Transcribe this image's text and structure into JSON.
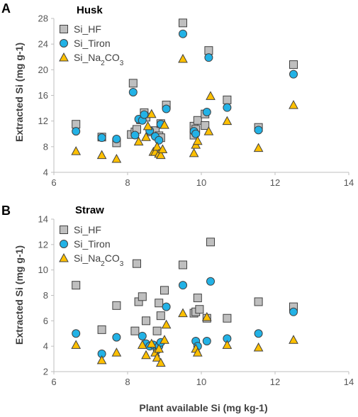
{
  "colors": {
    "hf": "#bfbfbf",
    "tiron": "#22b2e6",
    "na2co3": "#ffc000",
    "stroke": "#404040",
    "axis": "#bfbfbf"
  },
  "chart_data": [
    {
      "type": "scatter",
      "panel_label": "A",
      "title": "Husk",
      "xlabel": "",
      "ylabel": "Extracted Si (mg g-1)",
      "xlim": [
        6,
        14
      ],
      "ylim": [
        4,
        28
      ],
      "xticks": [
        "6",
        "8",
        "10",
        "12",
        "14"
      ],
      "yticks": [
        "4",
        "8",
        "12",
        "16",
        "20",
        "24",
        "28"
      ],
      "legend_position": "top-left",
      "series": [
        {
          "name": "Si_HF",
          "marker": "square",
          "points": [
            [
              6.6,
              11.5
            ],
            [
              7.3,
              9.5
            ],
            [
              7.7,
              8.6
            ],
            [
              8.1,
              9.9
            ],
            [
              8.15,
              17.9
            ],
            [
              8.2,
              10.3
            ],
            [
              8.25,
              10.7
            ],
            [
              8.35,
              12.2
            ],
            [
              8.45,
              13.3
            ],
            [
              8.5,
              12.6
            ],
            [
              8.65,
              10.3
            ],
            [
              8.75,
              10.5
            ],
            [
              8.85,
              9.7
            ],
            [
              8.9,
              11.6
            ],
            [
              8.9,
              9.4
            ],
            [
              9.05,
              14.5
            ],
            [
              9.5,
              27.3
            ],
            [
              9.8,
              9.8
            ],
            [
              9.8,
              11.2
            ],
            [
              9.85,
              10.7
            ],
            [
              9.9,
              12.1
            ],
            [
              10.1,
              11.3
            ],
            [
              10.1,
              13.1
            ],
            [
              10.2,
              23.0
            ],
            [
              10.7,
              15.3
            ],
            [
              11.55,
              11.0
            ],
            [
              12.5,
              20.8
            ]
          ]
        },
        {
          "name": "Si_Tiron",
          "marker": "circle",
          "points": [
            [
              6.6,
              10.4
            ],
            [
              7.3,
              9.4
            ],
            [
              7.7,
              9.2
            ],
            [
              8.15,
              16.5
            ],
            [
              8.2,
              9.8
            ],
            [
              8.3,
              12.3
            ],
            [
              8.4,
              12.1
            ],
            [
              8.45,
              13.0
            ],
            [
              8.6,
              10.5
            ],
            [
              8.75,
              9.6
            ],
            [
              8.85,
              9.0
            ],
            [
              8.9,
              11.5
            ],
            [
              9.05,
              13.9
            ],
            [
              9.5,
              25.6
            ],
            [
              9.8,
              10.4
            ],
            [
              9.85,
              10.0
            ],
            [
              10.15,
              13.4
            ],
            [
              10.2,
              21.9
            ],
            [
              10.7,
              14.1
            ],
            [
              11.55,
              10.6
            ],
            [
              12.5,
              19.3
            ]
          ]
        },
        {
          "name": "Si_Na2CO3",
          "marker": "triangle",
          "points": [
            [
              6.6,
              7.3
            ],
            [
              7.3,
              6.7
            ],
            [
              7.7,
              6.1
            ],
            [
              8.3,
              8.8
            ],
            [
              8.5,
              9.5
            ],
            [
              8.55,
              11.2
            ],
            [
              8.65,
              13.1
            ],
            [
              8.7,
              7.2
            ],
            [
              8.75,
              7.2
            ],
            [
              8.8,
              8.0
            ],
            [
              8.85,
              6.9
            ],
            [
              8.9,
              6.7
            ],
            [
              8.95,
              7.6
            ],
            [
              9.0,
              11.4
            ],
            [
              9.5,
              21.7
            ],
            [
              9.8,
              7.0
            ],
            [
              9.85,
              8.3
            ],
            [
              9.9,
              8.9
            ],
            [
              10.2,
              10.4
            ],
            [
              10.25,
              15.9
            ],
            [
              10.7,
              12.0
            ],
            [
              11.55,
              7.8
            ],
            [
              12.5,
              14.5
            ]
          ]
        }
      ]
    },
    {
      "type": "scatter",
      "panel_label": "B",
      "title": "Straw",
      "xlabel": "Plant available Si (mg kg-1)",
      "ylabel": "Extracted Si (mg g-1)",
      "xlim": [
        6,
        14
      ],
      "ylim": [
        2,
        14
      ],
      "xticks": [
        "6",
        "8",
        "10",
        "12",
        "14"
      ],
      "yticks": [
        "2",
        "4",
        "6",
        "8",
        "10",
        "12",
        "14"
      ],
      "legend_position": "top-left",
      "series": [
        {
          "name": "Si_HF",
          "marker": "square",
          "points": [
            [
              6.6,
              8.8
            ],
            [
              7.3,
              5.3
            ],
            [
              7.7,
              7.2
            ],
            [
              8.2,
              5.2
            ],
            [
              8.25,
              10.5
            ],
            [
              8.3,
              7.5
            ],
            [
              8.4,
              7.9
            ],
            [
              8.5,
              6.0
            ],
            [
              8.8,
              5.2
            ],
            [
              8.85,
              7.4
            ],
            [
              8.9,
              6.4
            ],
            [
              9.0,
              8.4
            ],
            [
              9.5,
              10.4
            ],
            [
              9.8,
              6.6
            ],
            [
              9.85,
              6.7
            ],
            [
              9.9,
              7.8
            ],
            [
              9.95,
              6.9
            ],
            [
              10.15,
              6.2
            ],
            [
              10.25,
              12.2
            ],
            [
              10.7,
              6.2
            ],
            [
              11.55,
              7.5
            ],
            [
              12.5,
              7.1
            ]
          ]
        },
        {
          "name": "Si_Tiron",
          "marker": "circle",
          "points": [
            [
              6.6,
              5.0
            ],
            [
              7.3,
              3.4
            ],
            [
              7.7,
              4.7
            ],
            [
              8.4,
              4.8
            ],
            [
              8.5,
              4.2
            ],
            [
              8.6,
              4.0
            ],
            [
              8.7,
              4.1
            ],
            [
              8.8,
              3.7
            ],
            [
              8.85,
              4.0
            ],
            [
              8.9,
              4.3
            ],
            [
              9.05,
              7.1
            ],
            [
              9.5,
              8.8
            ],
            [
              9.85,
              4.4
            ],
            [
              9.9,
              4.0
            ],
            [
              10.15,
              4.4
            ],
            [
              10.25,
              9.1
            ],
            [
              10.7,
              4.6
            ],
            [
              11.55,
              5.0
            ],
            [
              12.5,
              6.7
            ]
          ]
        },
        {
          "name": "Si_Na2CO3",
          "marker": "triangle",
          "points": [
            [
              6.6,
              4.1
            ],
            [
              7.3,
              2.9
            ],
            [
              7.7,
              3.5
            ],
            [
              8.4,
              4.1
            ],
            [
              8.5,
              3.3
            ],
            [
              8.65,
              4.2
            ],
            [
              8.75,
              3.5
            ],
            [
              8.8,
              3.1
            ],
            [
              8.85,
              3.8
            ],
            [
              8.9,
              2.7
            ],
            [
              9.0,
              4.5
            ],
            [
              9.05,
              5.7
            ],
            [
              9.5,
              6.6
            ],
            [
              9.85,
              3.8
            ],
            [
              9.9,
              3.5
            ],
            [
              10.15,
              6.3
            ],
            [
              10.7,
              4.1
            ],
            [
              11.55,
              3.9
            ],
            [
              12.5,
              4.5
            ]
          ]
        }
      ]
    }
  ]
}
